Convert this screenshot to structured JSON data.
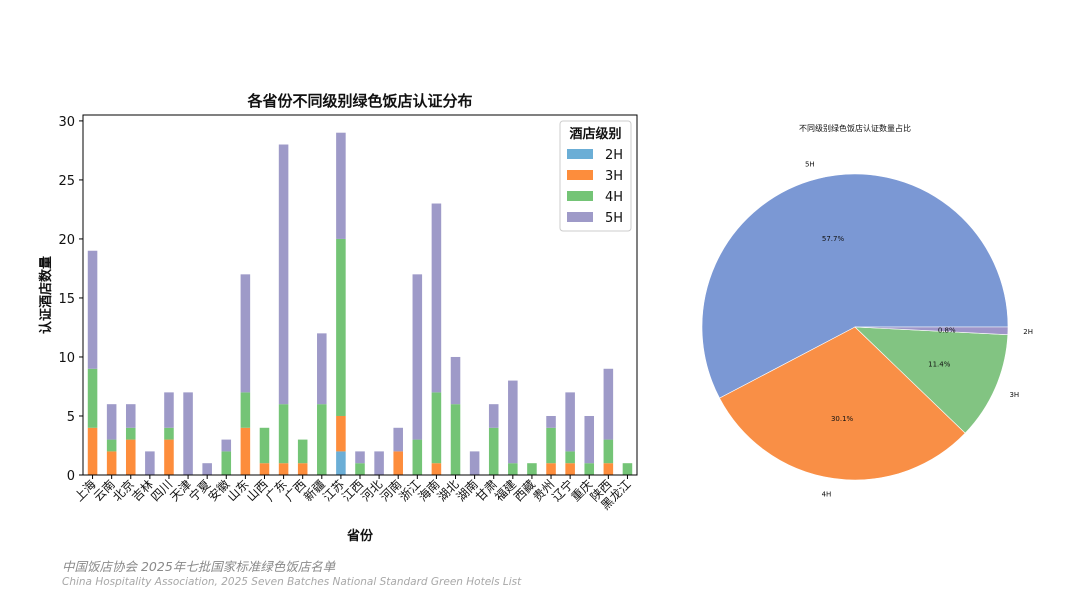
{
  "chart_data": [
    {
      "type": "bar",
      "stacked": true,
      "title": "各省份不同级别绿色饭店认证分布",
      "xlabel": "省份",
      "ylabel": "认证酒店数量",
      "ylim": [
        0,
        30.5
      ],
      "yticks": [
        0,
        5,
        10,
        15,
        20,
        25,
        30
      ],
      "legend_title": "酒店级别",
      "legend_position": "top-right",
      "categories": [
        "上海",
        "云南",
        "北京",
        "吉林",
        "四川",
        "天津",
        "宁夏",
        "安徽",
        "山东",
        "山西",
        "广东",
        "广西",
        "新疆",
        "江苏",
        "江西",
        "河北",
        "河南",
        "浙江",
        "海南",
        "湖北",
        "湖南",
        "甘肃",
        "福建",
        "西藏",
        "贵州",
        "辽宁",
        "重庆",
        "陕西",
        "黑龙江"
      ],
      "series": [
        {
          "name": "2H",
          "color": "#6baed6",
          "values": [
            0,
            0,
            0,
            0,
            0,
            0,
            0,
            0,
            0,
            0,
            0,
            0,
            0,
            2,
            0,
            0,
            0,
            0,
            0,
            0,
            0,
            0,
            0,
            0,
            0,
            0,
            0,
            0,
            0
          ]
        },
        {
          "name": "3H",
          "color": "#fd8d3c",
          "values": [
            4,
            2,
            3,
            0,
            3,
            0,
            0,
            0,
            4,
            1,
            1,
            1,
            0,
            3,
            0,
            0,
            2,
            0,
            1,
            0,
            0,
            0,
            0,
            0,
            1,
            1,
            0,
            1,
            0
          ]
        },
        {
          "name": "4H",
          "color": "#74c476",
          "values": [
            5,
            1,
            1,
            0,
            1,
            0,
            0,
            2,
            3,
            3,
            5,
            2,
            6,
            15,
            1,
            0,
            0,
            3,
            6,
            6,
            0,
            4,
            1,
            1,
            3,
            1,
            1,
            2,
            1
          ]
        },
        {
          "name": "5H",
          "color": "#9e9ac8",
          "values": [
            10,
            3,
            2,
            2,
            3,
            7,
            1,
            1,
            10,
            0,
            22,
            0,
            6,
            9,
            1,
            2,
            2,
            14,
            16,
            4,
            2,
            2,
            7,
            0,
            1,
            5,
            4,
            6,
            0
          ]
        }
      ]
    },
    {
      "type": "pie",
      "title": "不同级别绿色饭店认证数量占比",
      "labels": [
        "5H",
        "4H",
        "3H",
        "2H"
      ],
      "values": [
        57.7,
        30.1,
        11.4,
        0.8
      ],
      "value_labels": [
        "57.7%",
        "30.1%",
        "11.4%",
        "0.8%"
      ],
      "colors": [
        "#7b98d4",
        "#f98f46",
        "#82c482",
        "#9e95c9"
      ]
    }
  ],
  "footer": {
    "cn": "中国饭店协会  2025年七批国家标准绿色饭店名单",
    "en": "China Hospitality Association, 2025 Seven Batches National Standard Green Hotels List"
  }
}
